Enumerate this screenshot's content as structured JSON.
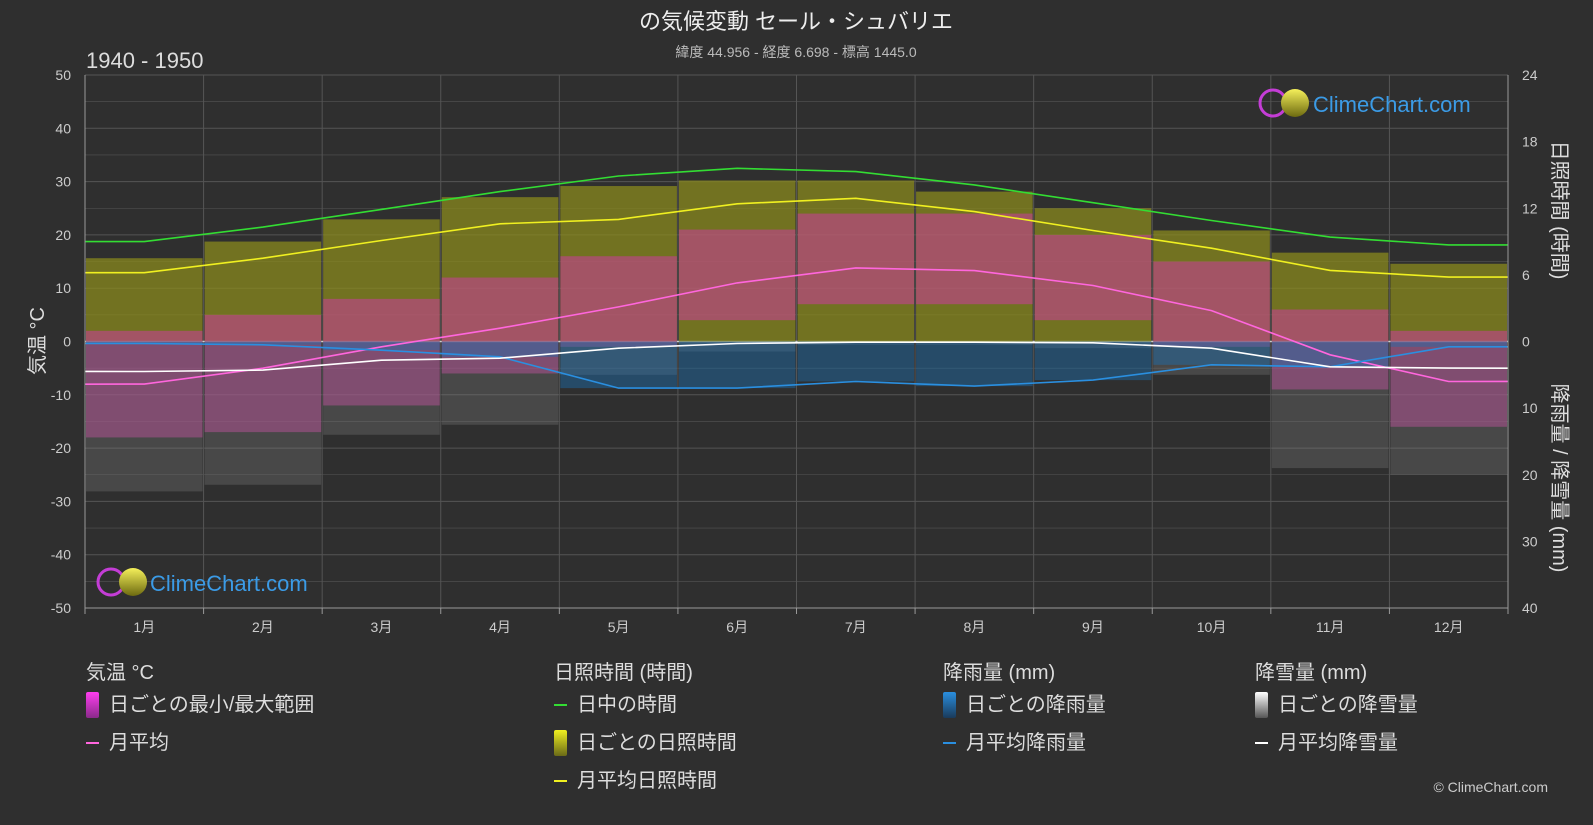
{
  "header": {
    "title": "の気候変動 セール・シュバリエ",
    "subtitle": "緯度 44.956 - 経度 6.698 - 標高 1445.0",
    "period": "1940 - 1950"
  },
  "logo_text": "ClimeChart.com",
  "copyright": "© ClimeChart.com",
  "colors": {
    "background": "#2f2f2f",
    "temp_band": "#cc3d9e",
    "temp_line": "#ff66dd",
    "daylight": "#33dd33",
    "sunshine_band": "#8a8a1e",
    "sunshine_line": "#f0f020",
    "rain_bar": "#1d6fb0",
    "rain_line": "#2a8fe0",
    "snow_bar": "#777777",
    "snow_line": "#ffffff",
    "logo_blue": "#3b9be6"
  },
  "chart_data": {
    "type": "line",
    "months": [
      "1月",
      "2月",
      "3月",
      "4月",
      "5月",
      "6月",
      "7月",
      "8月",
      "9月",
      "10月",
      "11月",
      "12月"
    ],
    "y_left": {
      "label": "気温 °C",
      "range": [
        -50,
        50
      ],
      "ticks": [
        "50",
        "40",
        "30",
        "20",
        "10",
        "0",
        "-10",
        "-20",
        "-30",
        "-40",
        "-50"
      ]
    },
    "y_right_top": {
      "label": "日照時間 (時間)",
      "range": [
        0,
        24
      ],
      "ticks": [
        "24",
        "18",
        "12",
        "6",
        "0"
      ]
    },
    "y_right_bottom": {
      "label": "降雨量 / 降雪量 (mm)",
      "range": [
        0,
        40
      ],
      "ticks": [
        "10",
        "20",
        "30",
        "40"
      ]
    },
    "series": [
      {
        "name": "日中の時間",
        "axis": "hours",
        "values": [
          9.0,
          10.3,
          11.9,
          13.5,
          14.9,
          15.6,
          15.3,
          14.1,
          12.5,
          10.9,
          9.4,
          8.7
        ]
      },
      {
        "name": "月平均日照時間",
        "axis": "hours",
        "values": [
          6.2,
          7.5,
          9.1,
          10.6,
          11.0,
          12.4,
          12.9,
          11.7,
          10.0,
          8.4,
          6.4,
          5.8
        ]
      },
      {
        "name": "月平均",
        "axis": "temp",
        "values": [
          -8.0,
          -5.0,
          -1.0,
          2.5,
          6.5,
          11.0,
          13.8,
          13.3,
          10.5,
          5.8,
          -2.5,
          -7.5
        ]
      },
      {
        "name": "月平均降雨量",
        "axis": "precip",
        "values": [
          0.3,
          0.5,
          1.3,
          2.3,
          7.0,
          7.0,
          6.0,
          6.7,
          5.8,
          3.5,
          3.8,
          0.8
        ]
      },
      {
        "name": "月平均降雪量",
        "axis": "precip",
        "values": [
          4.5,
          4.3,
          2.8,
          2.5,
          1.0,
          0.3,
          0.1,
          0.1,
          0.2,
          1.0,
          3.8,
          4.0
        ]
      }
    ],
    "daily_temp_band": {
      "min": [
        -18,
        -17,
        -12,
        -6,
        -1,
        4,
        7,
        7,
        4,
        -1,
        -9,
        -16
      ],
      "max": [
        2,
        5,
        8,
        12,
        16,
        21,
        24,
        24,
        20,
        15,
        6,
        2
      ]
    },
    "daily_sunshine_band": {
      "max": [
        7.5,
        9.0,
        11.0,
        13.0,
        14.0,
        14.5,
        14.5,
        13.5,
        12.0,
        10.0,
        8.0,
        7.0
      ]
    },
    "grid": true
  },
  "legend": {
    "temp": {
      "title": "気温 °C",
      "range_label": "日ごとの最小/最大範囲",
      "avg_label": "月平均"
    },
    "sun": {
      "title": "日照時間 (時間)",
      "daylight_label": "日中の時間",
      "daily_label": "日ごとの日照時間",
      "avg_label": "月平均日照時間"
    },
    "rain": {
      "title": "降雨量 (mm)",
      "daily_label": "日ごとの降雨量",
      "avg_label": "月平均降雨量"
    },
    "snow": {
      "title": "降雪量 (mm)",
      "daily_label": "日ごとの降雪量",
      "avg_label": "月平均降雪量"
    }
  }
}
